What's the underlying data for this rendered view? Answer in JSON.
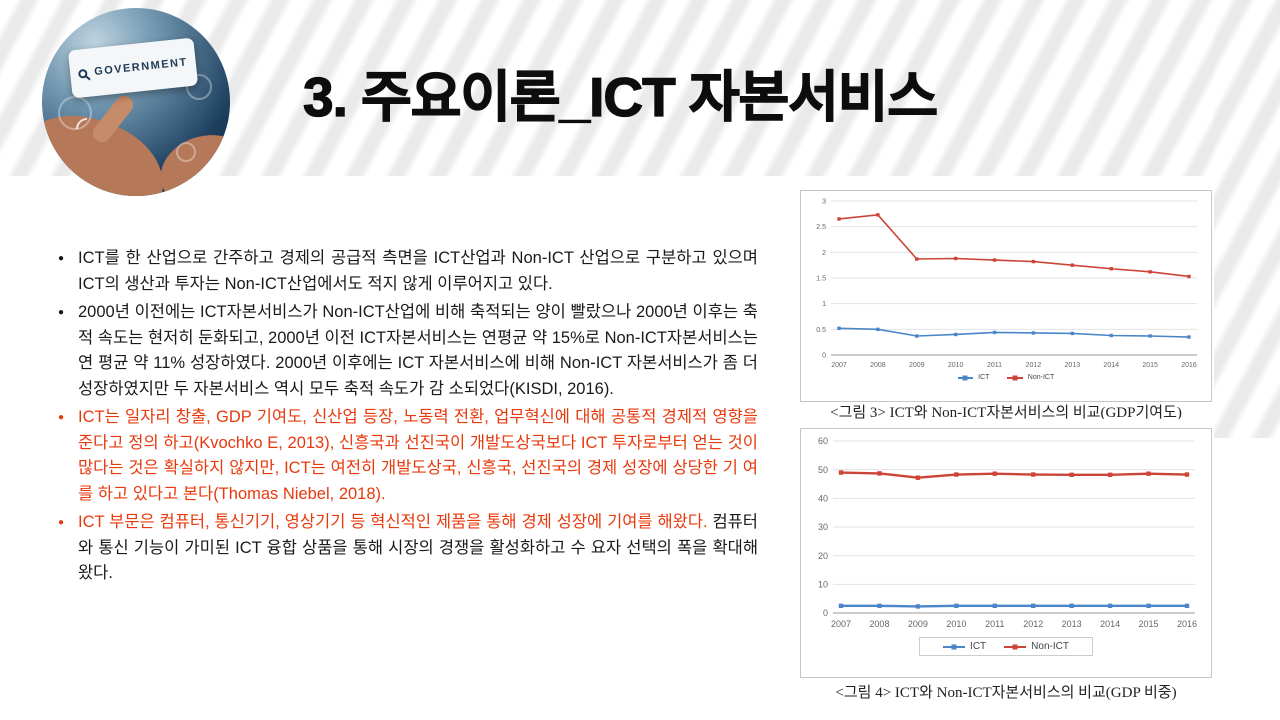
{
  "slide_title": "3. 주요이론_ICT 자본서비스",
  "header_image": {
    "label": "GOVERNMENT"
  },
  "colors": {
    "accent_red": "#e8390d",
    "ict_blue": "#4a86c8",
    "nonict_red": "#cc4437"
  },
  "bullets": [
    {
      "marker_color": "black",
      "segments": [
        {
          "color": "black",
          "text": "ICT를 한 산업으로 간주하고 경제의 공급적 측면을 ICT산업과 Non-ICT 산업으로 구분하고 있으며 ICT의 생산과 투자는 Non-ICT산업에서도 적지 않게 이루어지고 있다."
        }
      ]
    },
    {
      "marker_color": "black",
      "segments": [
        {
          "color": "black",
          "text": "2000년 이전에는 ICT자본서비스가 Non-ICT산업에 비해 축적되는 양이 빨랐으나 2000년 이후는 축적 속도는 현저히 둔화되고, 2000년 이전 ICT자본서비스는 연평균 약 15%로 Non-ICT자본서비스는 연 평균 약 11% 성장하였다. 2000년 이후에는 ICT 자본서비스에 비해 Non-ICT 자본서비스가 좀 더 성장하였지만 두 자본서비스 역시 모두 축적 속도가 감 소되었다(KISDI, 2016)."
        }
      ]
    },
    {
      "marker_color": "red",
      "segments": [
        {
          "color": "red",
          "text": "ICT는 일자리 창출, GDP 기여도, 신산업 등장, 노동력 전환, 업무혁신에 대해 공통적 경제적 영향을 준다고 정의 하고(Kvochko E, 2013), 신흥국과 선진국이 개발도상국보다 ICT 투자로부터 얻는 것이 많다는 것은 확실하지 않지만, ICT는 여전히 개발도상국, 신흥국, 선진국의 경제 성장에 상당한 기 여를 하고 있다고 본다(Thomas Niebel, 2018)."
        }
      ]
    },
    {
      "marker_color": "red",
      "segments": [
        {
          "color": "red",
          "text": "ICT 부문은 컴퓨터, 통신기기, 영상기기 등 혁신적인 제품을 통해 경제 성장에 기여를 해왔다."
        },
        {
          "color": "black",
          "text": " 컴퓨터 와 통신 기능이 가미된 ICT 융합 상품을 통해 시장의 경쟁을 활성화하고 수 요자 선택의 폭을 확대해 왔다."
        }
      ]
    }
  ],
  "chart_data": [
    {
      "type": "line",
      "caption": "<그림 3> ICT와 Non-ICT자본서비스의 비교(GDP기여도)",
      "categories": [
        "2007",
        "2008",
        "2009",
        "2010",
        "2011",
        "2012",
        "2013",
        "2014",
        "2015",
        "2016"
      ],
      "ylim": [
        0,
        3
      ],
      "ytick": 0.5,
      "grid": true,
      "legend_position": "bottom",
      "series": [
        {
          "name": "ICT",
          "color": "#4a86c8",
          "values": [
            0.52,
            0.5,
            0.37,
            0.4,
            0.44,
            0.43,
            0.42,
            0.38,
            0.37,
            0.35
          ]
        },
        {
          "name": "Non-ICT",
          "color": "#cc4437",
          "values": [
            2.65,
            2.73,
            1.87,
            1.88,
            1.85,
            1.82,
            1.75,
            1.68,
            1.62,
            1.53
          ]
        }
      ]
    },
    {
      "type": "line",
      "caption": "<그림 4> ICT와 Non-ICT자본서비스의 비교(GDP 비중)",
      "categories": [
        "2007",
        "2008",
        "2009",
        "2010",
        "2011",
        "2012",
        "2013",
        "2014",
        "2015",
        "2016"
      ],
      "ylim": [
        0,
        60
      ],
      "ytick": 10,
      "grid": true,
      "legend_position": "bottom",
      "series": [
        {
          "name": "ICT",
          "color": "#4a86c8",
          "values": [
            2.5,
            2.5,
            2.3,
            2.5,
            2.5,
            2.5,
            2.5,
            2.5,
            2.5,
            2.5
          ]
        },
        {
          "name": "Non-ICT",
          "color": "#cc4437",
          "values": [
            49.0,
            48.7,
            47.2,
            48.3,
            48.6,
            48.3,
            48.2,
            48.2,
            48.6,
            48.3
          ]
        }
      ]
    }
  ]
}
